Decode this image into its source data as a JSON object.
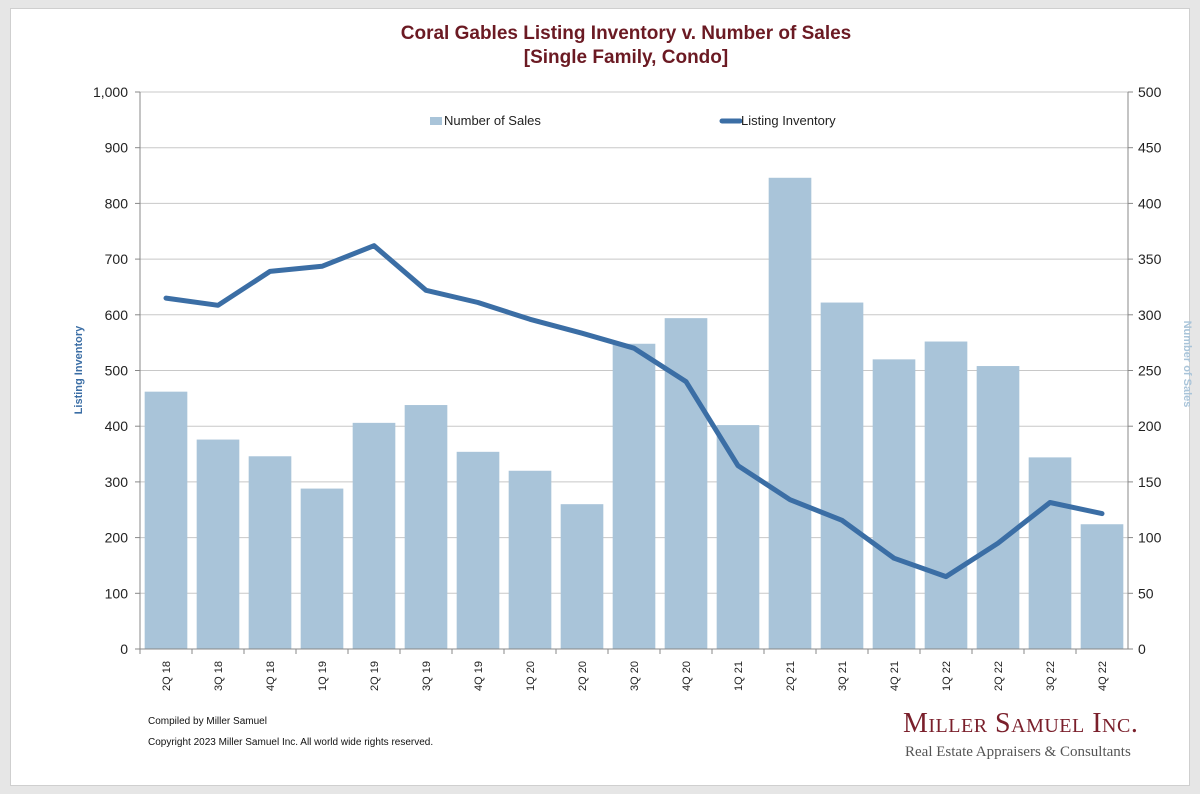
{
  "chart_data": {
    "type": "bar",
    "title_lines": [
      "Coral Gables Listing Inventory v. Number of Sales",
      "[Single Family, Condo]"
    ],
    "categories": [
      "2Q 18",
      "3Q 18",
      "4Q 18",
      "1Q 19",
      "2Q 19",
      "3Q 19",
      "4Q 19",
      "1Q 20",
      "2Q 20",
      "3Q 20",
      "4Q 20",
      "1Q 21",
      "2Q 21",
      "3Q 21",
      "4Q 21",
      "1Q 22",
      "2Q 22",
      "3Q 22",
      "4Q 22"
    ],
    "series": [
      {
        "name": "Number of Sales",
        "type": "bar",
        "axis": "right",
        "color": "#a9c4d9",
        "values": [
          231,
          188,
          173,
          144,
          203,
          219,
          177,
          160,
          130,
          274,
          297,
          201,
          423,
          311,
          260,
          276,
          254,
          172,
          112
        ]
      },
      {
        "name": "Listing Inventory",
        "type": "line",
        "axis": "left",
        "color": "#3b6ea5",
        "values": [
          630,
          617,
          678,
          687,
          724,
          644,
          622,
          592,
          567,
          540,
          480,
          329,
          268,
          231,
          163,
          130,
          190,
          263,
          243
        ]
      }
    ],
    "y_left": {
      "label": "Listing Inventory",
      "range": [
        0,
        1000
      ],
      "ticks": [
        "0",
        "100",
        "200",
        "300",
        "400",
        "500",
        "600",
        "700",
        "800",
        "900",
        "1,000"
      ]
    },
    "y_right": {
      "label": "Number of Sales",
      "range": [
        0,
        500
      ],
      "ticks": [
        "0",
        "50",
        "100",
        "150",
        "200",
        "250",
        "300",
        "350",
        "400",
        "450",
        "500"
      ]
    },
    "grid": true,
    "legend_position": "top"
  },
  "footer": {
    "compiled": "Compiled by Miller Samuel",
    "copyright": "Copyright 2023 Miller Samuel Inc.  All world wide rights reserved."
  },
  "brand": {
    "name": "Miller Samuel Inc.",
    "tagline": "Real Estate Appraisers & Consultants"
  }
}
